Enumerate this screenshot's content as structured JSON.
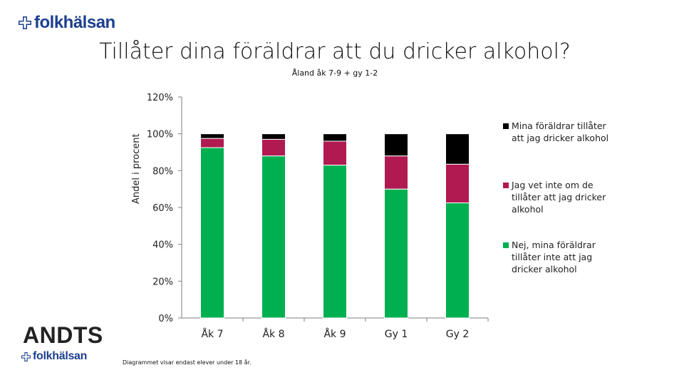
{
  "header": {
    "logo_text": "folkhälsan",
    "title": "Tillåter dina föräldrar att du dricker alkohol?",
    "subtitle": "Åland åk 7-9 + gy 1-2"
  },
  "footer": {
    "note": "Diagrammet visar endast elever under 18 år.",
    "andts_logo": "ANDTS",
    "logo_text": "folkhälsan"
  },
  "colors": {
    "brand": "#1c3f8f",
    "series_no": "#00b050",
    "series_unknown": "#b01a50",
    "series_yes": "#000000"
  },
  "chart_data": {
    "type": "bar",
    "stacked": true,
    "ylabel": "Andel i procent",
    "xlabel": "",
    "ylim": [
      0,
      120
    ],
    "yticks": [
      "0%",
      "20%",
      "40%",
      "60%",
      "80%",
      "100%",
      "120%"
    ],
    "ytick_values": [
      0,
      20,
      40,
      60,
      80,
      100,
      120
    ],
    "categories": [
      "Åk 7",
      "Åk 8",
      "Åk 9",
      "Gy 1",
      "Gy 2"
    ],
    "series": [
      {
        "name": "Nej, mina föräldrar tillåter inte att jag dricker alkohol",
        "color": "#00b050",
        "values": [
          92.5,
          88,
          83,
          70,
          62.5
        ]
      },
      {
        "name": "Jag vet inte om de tillåter att jag dricker alkohol",
        "color": "#b01a50",
        "values": [
          5,
          9,
          13,
          18,
          21
        ]
      },
      {
        "name": "Mina föräldrar tillåter att jag dricker alkohol",
        "color": "#000000",
        "values": [
          2.5,
          3,
          4,
          12,
          16.5
        ]
      }
    ],
    "legend_position": "right",
    "grid": false
  }
}
